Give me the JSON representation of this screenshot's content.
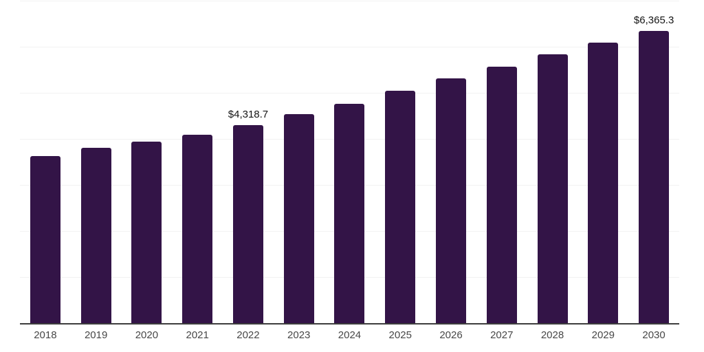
{
  "chart_data": {
    "type": "bar",
    "title": "",
    "xlabel": "",
    "ylabel": "",
    "categories": [
      "2018",
      "2019",
      "2020",
      "2021",
      "2022",
      "2023",
      "2024",
      "2025",
      "2026",
      "2027",
      "2028",
      "2029",
      "2030"
    ],
    "values": [
      3635,
      3825,
      3950,
      4110,
      4318.7,
      4555,
      4775,
      5055,
      5325,
      5580,
      5855,
      6105,
      6365.3
    ],
    "labeled_points": [
      {
        "category": "2022",
        "label": "$4,318.7"
      },
      {
        "category": "2030",
        "label": "$6,365.3"
      }
    ],
    "ylim": [
      0,
      7000
    ],
    "grid": true,
    "gridline_step": 1000,
    "legend": "none",
    "colors": {
      "bar": "#331447",
      "gridline": "#f2f2f2",
      "axis_line": "#3d3d3d",
      "value_label_text": "#141414",
      "axis_tick_text": "#474747",
      "background": "#ffffff"
    }
  }
}
